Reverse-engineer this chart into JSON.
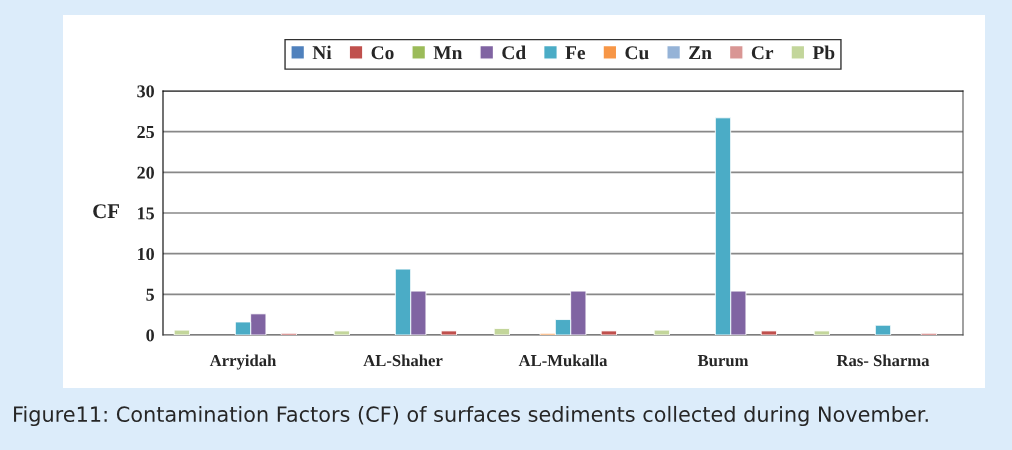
{
  "chart_data": {
    "type": "bar",
    "ylabel": "CF",
    "categories": [
      "Arryidah",
      "AL-Shaher",
      "AL-Mukalla",
      "Burum",
      "Ras- Sharma"
    ],
    "series": [
      {
        "name": "Ni",
        "color": "#4f81bd",
        "values": [
          null,
          null,
          null,
          null,
          null
        ]
      },
      {
        "name": "Co",
        "color": "#c0504d",
        "values": [
          0.2,
          0.5,
          0.5,
          0.5,
          0.2
        ]
      },
      {
        "name": "Mn",
        "color": "#9bbb59",
        "values": [
          null,
          null,
          null,
          null,
          null
        ]
      },
      {
        "name": "Cd",
        "color": "#8064a2",
        "values": [
          2.6,
          5.4,
          5.4,
          5.4,
          null
        ]
      },
      {
        "name": "Fe",
        "color": "#4bacc6",
        "values": [
          1.6,
          8.1,
          1.9,
          26.7,
          1.2
        ]
      },
      {
        "name": "Cu",
        "color": "#f79646",
        "values": [
          null,
          null,
          0.2,
          null,
          null
        ]
      },
      {
        "name": "Zn",
        "color": "#95b3d7",
        "values": [
          null,
          null,
          null,
          null,
          null
        ]
      },
      {
        "name": "Cr",
        "color": "#d99694",
        "values": [
          null,
          null,
          null,
          null,
          null
        ]
      },
      {
        "name": "Pb",
        "color": "#c3d69b",
        "values": [
          0.6,
          0.5,
          0.8,
          0.6,
          0.5
        ]
      }
    ],
    "ylim": [
      0,
      30
    ],
    "yticks": [
      0,
      5,
      10,
      15,
      20,
      25,
      30
    ],
    "grid": "y",
    "legend": "top",
    "annotations": [
      "Figure11: Contamination Factors (CF) of surfaces sediments collected during November."
    ]
  }
}
